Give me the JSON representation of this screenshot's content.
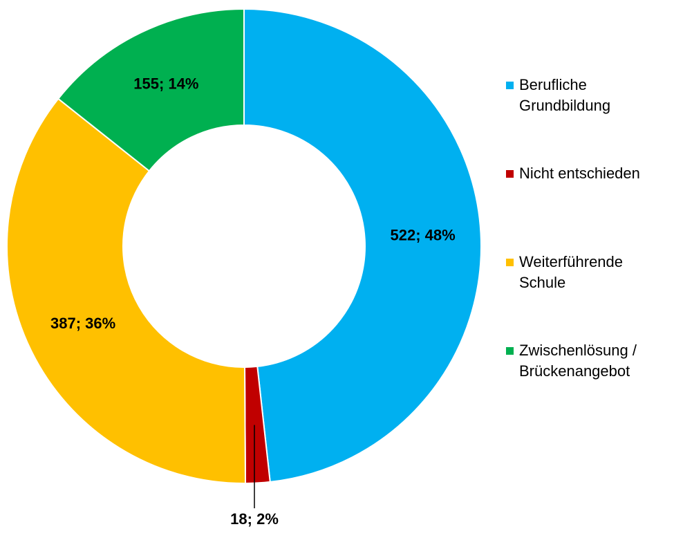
{
  "chart_data": {
    "type": "donut",
    "categories": [
      "Berufliche Grundbildung",
      "Nicht entschieden",
      "Weiterführende Schule",
      "Zwischenlösung / Brückenangebot"
    ],
    "values": [
      522,
      18,
      387,
      155
    ],
    "value_labels": [
      "522; 48%",
      "18; 2%",
      "387; 36%",
      "155; 14%"
    ],
    "colors": [
      "#00b0f0",
      "#c00000",
      "#ffc000",
      "#00b050"
    ],
    "legend": "right"
  }
}
